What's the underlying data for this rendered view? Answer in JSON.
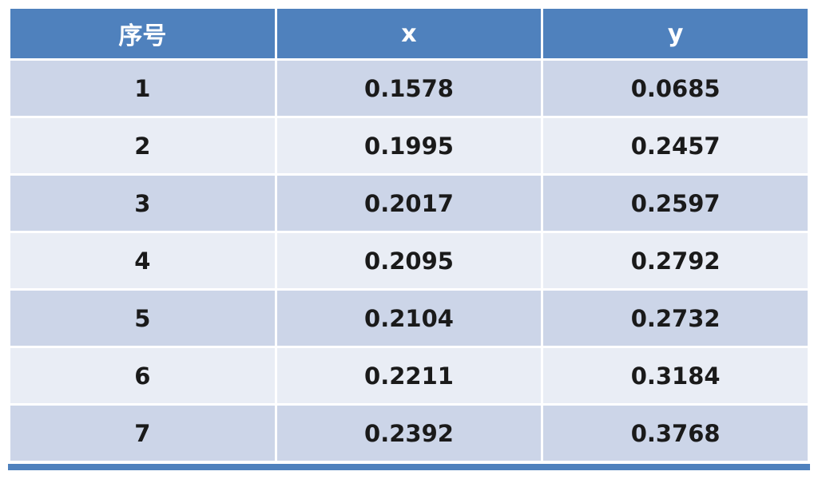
{
  "table": {
    "headers": [
      {
        "label": "序号"
      },
      {
        "label": "x"
      },
      {
        "label": "y"
      }
    ],
    "rows": [
      [
        "1",
        "0.1578",
        "0.0685"
      ],
      [
        "2",
        "0.1995",
        "0.2457"
      ],
      [
        "3",
        "0.2017",
        "0.2597"
      ],
      [
        "4",
        "0.2095",
        "0.2792"
      ],
      [
        "5",
        "0.2104",
        "0.2732"
      ],
      [
        "6",
        "0.2211",
        "0.3184"
      ],
      [
        "7",
        "0.2392",
        "0.3768"
      ]
    ]
  },
  "colors": {
    "header_bg": "#4f81bd",
    "header_text": "#ffffff",
    "row_odd_bg": "#ccd5e8",
    "row_even_bg": "#e9edf5",
    "body_text": "#1a1a1a",
    "bottom_border": "#4f81bd"
  },
  "chart_data": {
    "type": "table",
    "columns": [
      "序号",
      "x",
      "y"
    ],
    "rows": [
      [
        1,
        0.1578,
        0.0685
      ],
      [
        2,
        0.1995,
        0.2457
      ],
      [
        3,
        0.2017,
        0.2597
      ],
      [
        4,
        0.2095,
        0.2792
      ],
      [
        5,
        0.2104,
        0.2732
      ],
      [
        6,
        0.2211,
        0.3184
      ],
      [
        7,
        0.2392,
        0.3768
      ]
    ]
  }
}
